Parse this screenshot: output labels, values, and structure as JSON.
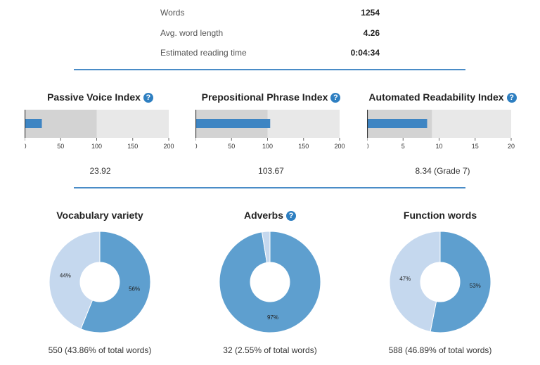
{
  "stats": [
    {
      "label": "Words",
      "value": "1254"
    },
    {
      "label": "Avg. word length",
      "value": "4.26"
    },
    {
      "label": "Estimated reading time",
      "value": "0:04:34"
    }
  ],
  "help_icon": {
    "glyph": "?",
    "icon": "question-circle-icon"
  },
  "colors": {
    "accent": "#4a8cc7",
    "bar": "#3e85c3",
    "gauge_band_dark": "#d3d3d3",
    "gauge_band_light": "#e8e8e8",
    "pie_main": "#5e9fcf",
    "pie_rest": "#c5d8ee"
  },
  "chart_data": [
    {
      "type": "bar",
      "title": "Passive Voice Index",
      "value": 23.92,
      "value_label": "23.92",
      "ylim": [
        0,
        200
      ],
      "target": 100,
      "ticks": [
        "0",
        "50",
        "100",
        "150",
        "200"
      ]
    },
    {
      "type": "bar",
      "title": "Prepositional Phrase Index",
      "value": 103.67,
      "value_label": "103.67",
      "ylim": [
        0,
        200
      ],
      "target": 100,
      "ticks": [
        "0",
        "50",
        "100",
        "150",
        "200"
      ]
    },
    {
      "type": "bar",
      "title": "Automated Readability Index",
      "value": 8.34,
      "value_label": "8.34 (Grade 7)",
      "ylim": [
        0,
        20
      ],
      "target": 9,
      "ticks": [
        "0",
        "5",
        "10",
        "15",
        "20"
      ]
    },
    {
      "type": "pie",
      "title": "Vocabulary variety",
      "has_help": false,
      "slices": [
        {
          "label": "56%",
          "value": 56.14
        },
        {
          "label": "44%",
          "value": 43.86
        }
      ],
      "caption": "550 (43.86% of total words)"
    },
    {
      "type": "pie",
      "title": "Adverbs",
      "has_help": true,
      "slices": [
        {
          "label": "97%",
          "value": 97.45
        },
        {
          "label": "",
          "value": 2.55
        }
      ],
      "caption": "32 (2.55% of total words)"
    },
    {
      "type": "pie",
      "title": "Function words",
      "has_help": false,
      "slices": [
        {
          "label": "53%",
          "value": 53.11
        },
        {
          "label": "47%",
          "value": 46.89
        }
      ],
      "caption": "588 (46.89% of total words)"
    }
  ]
}
